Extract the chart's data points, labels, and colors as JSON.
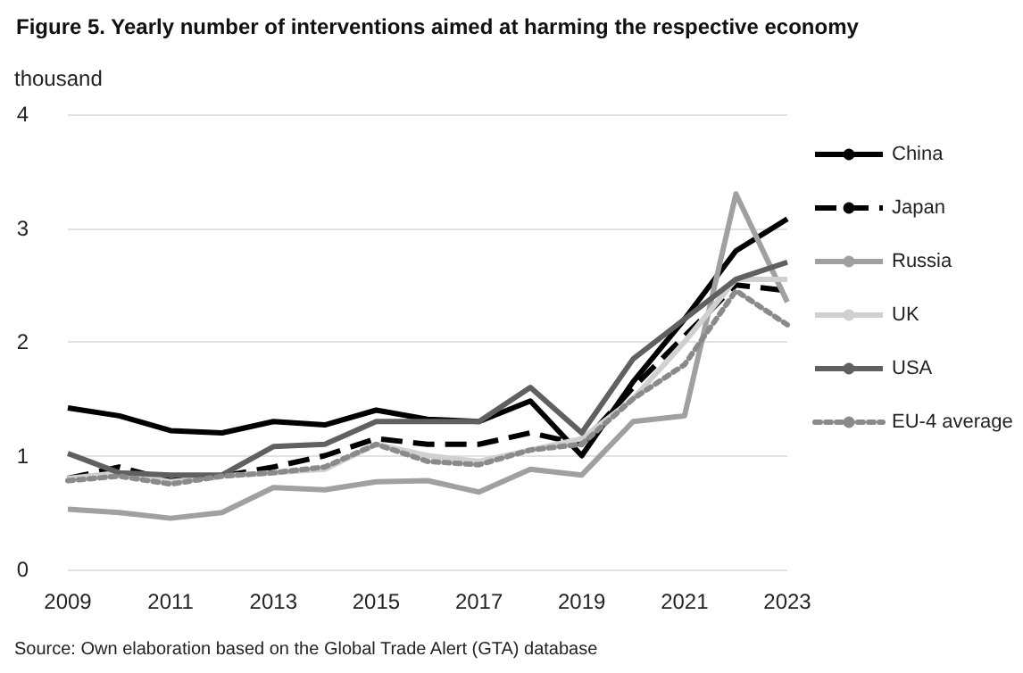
{
  "chart_data": {
    "type": "line",
    "title": "Figure 5. Yearly number of interventions aimed at harming the respective economy",
    "ylabel": "thousand",
    "annotations": [
      "Source: Own elaboration based on the Global Trade Alert (GTA) database"
    ],
    "x": [
      2009,
      2010,
      2011,
      2012,
      2013,
      2014,
      2015,
      2016,
      2017,
      2018,
      2019,
      2020,
      2021,
      2022,
      2023
    ],
    "xlim": [
      2009,
      2023
    ],
    "xticks": [
      2009,
      2011,
      2013,
      2015,
      2017,
      2019,
      2021,
      2023
    ],
    "ylim": [
      0,
      4
    ],
    "yticks": [
      0,
      1,
      2,
      3,
      4
    ],
    "grid": "y",
    "legend": "right",
    "marker": "none",
    "series": [
      {
        "name": "China",
        "color": "#000000",
        "line_style": "solid",
        "values": [
          1.42,
          1.35,
          1.22,
          1.2,
          1.3,
          1.27,
          1.4,
          1.32,
          1.3,
          1.48,
          1.0,
          1.65,
          2.2,
          2.8,
          3.08
        ]
      },
      {
        "name": "Japan",
        "color": "#000000",
        "line_style": "dashed",
        "values": [
          0.8,
          0.9,
          0.78,
          0.82,
          0.9,
          1.0,
          1.15,
          1.1,
          1.1,
          1.2,
          1.1,
          1.6,
          2.05,
          2.5,
          2.45
        ]
      },
      {
        "name": "Russia",
        "color": "#a0a0a0",
        "line_style": "solid",
        "values": [
          0.53,
          0.5,
          0.45,
          0.5,
          0.72,
          0.7,
          0.77,
          0.78,
          0.68,
          0.88,
          0.83,
          1.3,
          1.35,
          3.3,
          2.35
        ]
      },
      {
        "name": "UK",
        "color": "#d0d0d0",
        "line_style": "solid",
        "values": [
          0.8,
          0.85,
          0.77,
          0.82,
          0.85,
          0.88,
          1.1,
          1.0,
          0.95,
          1.05,
          1.15,
          1.5,
          2.0,
          2.55,
          2.55
        ]
      },
      {
        "name": "USA",
        "color": "#606060",
        "line_style": "solid",
        "values": [
          1.02,
          0.85,
          0.83,
          0.83,
          1.08,
          1.1,
          1.3,
          1.3,
          1.3,
          1.6,
          1.2,
          1.85,
          2.2,
          2.55,
          2.7
        ]
      },
      {
        "name": "EU-4 average",
        "color": "#8a8a8a",
        "line_style": "dotted",
        "values": [
          0.78,
          0.82,
          0.75,
          0.82,
          0.85,
          0.9,
          1.1,
          0.95,
          0.92,
          1.05,
          1.1,
          1.5,
          1.8,
          2.45,
          2.15
        ]
      }
    ]
  }
}
